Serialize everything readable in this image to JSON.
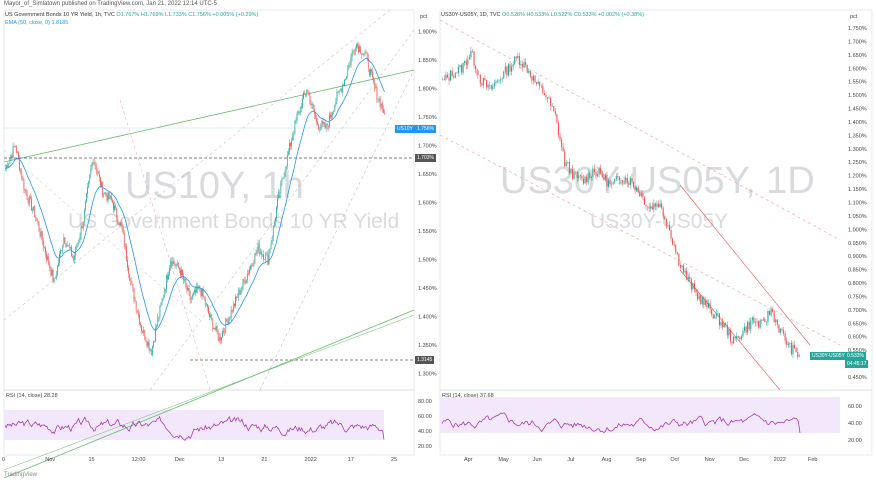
{
  "credit": "Mayor_of_Simlatown published on TradingView.com, Jan 21, 2022 12:14 UTC-5",
  "footer": "TradingView",
  "colors": {
    "up": "#26a69a",
    "down": "#ef5350",
    "ema": "#2196f3",
    "rsi": "#9c27b0",
    "rsi_band": "#e9d5f5",
    "green_line": "#66bb6a",
    "red_line": "#ef5350",
    "blue_tag": "#2196f3",
    "teal_tag": "#26a69a"
  },
  "left": {
    "legend_title": "US Government Bonds 10 YR Yield, 1h, TVC",
    "legend_ohlc": "O1.767% H1.769% L1.733% C1.756% +0.005% (+0.29%)",
    "legend_ema": "EMA (50, close, 0)  1.8185",
    "watermark_symbol": "US10Y, 1h",
    "watermark_name": "US Government Bonds 10 YR Yield",
    "price_unit": "pct",
    "tag_symbol": "US10Y",
    "tag_price": "1.756%",
    "level_label_1": "1.703%",
    "level_label_2": "1.3145",
    "rsi_label": "RSI (14, close)  28.28",
    "rsi_ticks": [
      "80.00",
      "60.00",
      "40.00",
      "20.00"
    ]
  },
  "right": {
    "legend_title": "US30Y-US05Y, 1D, TVC",
    "legend_ohlc": "O0.528% H0.533% L0.522% C0.533% +0.002% (+0.38%)",
    "watermark_symbol": "US30Y-US05Y, 1D",
    "watermark_name": "US30Y-US05Y",
    "price_unit": "pct",
    "tag_symbol": "US30Y-US05Y",
    "tag_price": "0.533%",
    "tag_sub": "04:45:17",
    "rsi_label": "RSI (14, close)  37.68",
    "rsi_ticks": [
      "60.00",
      "40.00",
      "20.00"
    ]
  },
  "chart_data": [
    {
      "type": "candlestick",
      "title": "US Government Bonds 10 YR Yield, 1h, TVC",
      "x_ticks": [
        "0",
        "Nov",
        "15",
        "12:00",
        "Dec",
        "13",
        "21",
        "2022",
        "17",
        "25"
      ],
      "y_ticks": [
        "1.900%",
        "1.850%",
        "1.800%",
        "1.750%",
        "1.700%",
        "1.650%",
        "1.600%",
        "1.550%",
        "1.500%",
        "1.450%",
        "1.400%",
        "1.350%",
        "1.300%"
      ],
      "ylim": [
        1.28,
        1.92
      ],
      "anchor_closes": [
        1.66,
        1.7,
        1.62,
        1.58,
        1.52,
        1.46,
        1.54,
        1.5,
        1.57,
        1.68,
        1.62,
        1.6,
        1.55,
        1.45,
        1.38,
        1.34,
        1.42,
        1.5,
        1.48,
        1.43,
        1.45,
        1.4,
        1.36,
        1.4,
        1.44,
        1.48,
        1.52,
        1.5,
        1.6,
        1.68,
        1.75,
        1.8,
        1.74,
        1.73,
        1.78,
        1.82,
        1.88,
        1.86,
        1.8,
        1.756
      ],
      "horizontal_levels": [
        1.703,
        1.3145
      ],
      "rsi_last": 28.28
    },
    {
      "type": "candlestick",
      "title": "US30Y-US05Y, 1D, TVC",
      "x_ticks": [
        "Apr",
        "May",
        "Jun",
        "Jul",
        "Aug",
        "Sep",
        "Oct",
        "Nov",
        "Dec",
        "2022",
        "Feb"
      ],
      "y_ticks": [
        "1.750%",
        "1.700%",
        "1.650%",
        "1.600%",
        "1.550%",
        "1.500%",
        "1.450%",
        "1.400%",
        "1.350%",
        "1.300%",
        "1.250%",
        "1.200%",
        "1.150%",
        "1.100%",
        "1.050%",
        "1.000%",
        "0.950%",
        "0.900%",
        "0.850%",
        "0.800%",
        "0.750%",
        "0.700%",
        "0.650%",
        "0.600%",
        "0.550%",
        "0.500%",
        "0.450%"
      ],
      "ylim": [
        0.42,
        1.78
      ],
      "anchor_closes": [
        1.55,
        1.58,
        1.6,
        1.66,
        1.56,
        1.52,
        1.56,
        1.6,
        1.64,
        1.6,
        1.54,
        1.5,
        1.42,
        1.25,
        1.2,
        1.18,
        1.22,
        1.2,
        1.16,
        1.2,
        1.18,
        1.14,
        1.08,
        1.1,
        1.02,
        0.9,
        0.82,
        0.76,
        0.72,
        0.68,
        0.64,
        0.58,
        0.62,
        0.66,
        0.64,
        0.7,
        0.62,
        0.56,
        0.53
      ],
      "rsi_last": 37.68
    }
  ]
}
